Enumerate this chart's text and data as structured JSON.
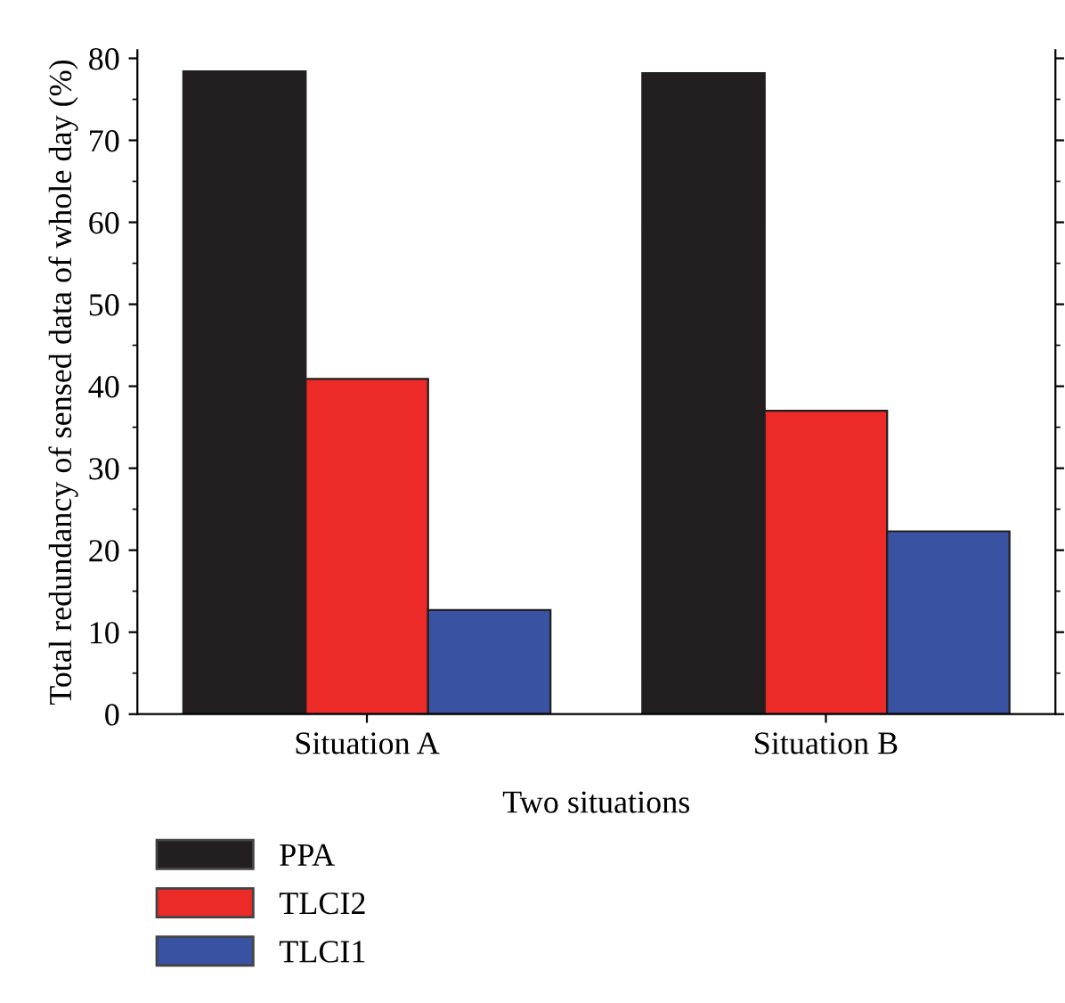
{
  "chart_data": {
    "type": "bar",
    "xlabel": "Two situations",
    "ylabel": "Total redundancy of sensed data of whole day (%)",
    "categories": [
      "Situation A",
      "Situation B"
    ],
    "series": [
      {
        "name": "PPA",
        "color": "#231f20",
        "values": [
          78.4,
          78.2
        ]
      },
      {
        "name": "TLCI2",
        "color": "#ec2a28",
        "values": [
          40.9,
          37.0
        ]
      },
      {
        "name": "TLCI1",
        "color": "#3a52a2",
        "values": [
          12.7,
          22.3
        ]
      }
    ],
    "ylim": [
      0,
      81
    ],
    "yticks": [
      0,
      10,
      20,
      30,
      40,
      50,
      60,
      70,
      80
    ],
    "grid": false,
    "legend": "bottom left"
  }
}
